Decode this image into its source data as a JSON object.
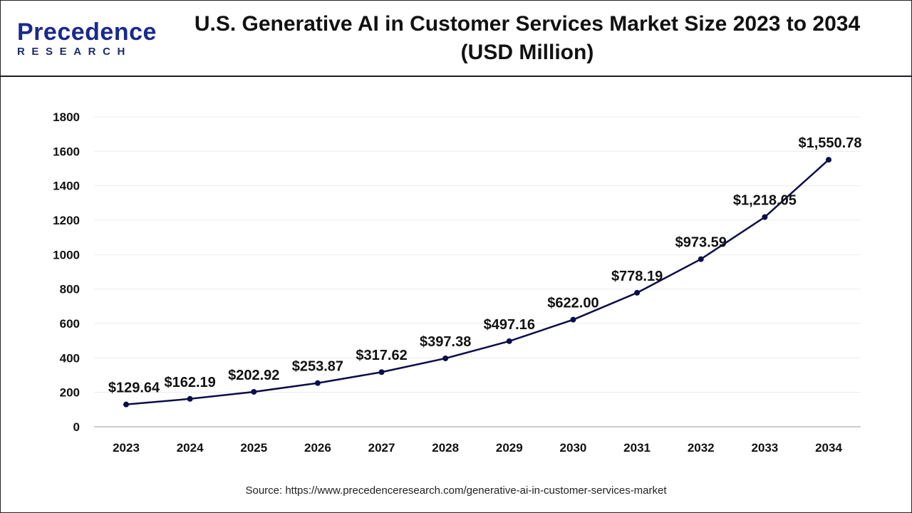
{
  "logo": {
    "brand": "Precedence",
    "sub": "RESEARCH"
  },
  "title_line1": "U.S. Generative AI in Customer Services Market Size 2023 to 2034",
  "title_line2": "(USD Million)",
  "source": "Source: https://www.precedenceresearch.com/generative-ai-in-customer-services-market",
  "chart_data": {
    "type": "line",
    "title": "U.S. Generative AI in Customer Services Market Size 2023 to 2034 (USD Million)",
    "xlabel": "",
    "ylabel": "",
    "categories": [
      "2023",
      "2024",
      "2025",
      "2026",
      "2027",
      "2028",
      "2029",
      "2030",
      "2031",
      "2032",
      "2033",
      "2034"
    ],
    "values": [
      129.64,
      162.19,
      202.92,
      253.87,
      317.62,
      397.38,
      497.16,
      622.0,
      778.19,
      973.59,
      1218.05,
      1550.78
    ],
    "data_labels": [
      "$129.64",
      "$162.19",
      "$202.92",
      "$253.87",
      "$317.62",
      "$397.38",
      "$497.16",
      "$622.00",
      "$778.19",
      "$973.59",
      "$1,218.05",
      "$1,550.78"
    ],
    "ylim": [
      0,
      1800
    ],
    "yticks": [
      "0",
      "200",
      "400",
      "600",
      "800",
      "1000",
      "1200",
      "1400",
      "1600",
      "1800"
    ],
    "grid": true,
    "line_color": "#0d0d4a"
  }
}
